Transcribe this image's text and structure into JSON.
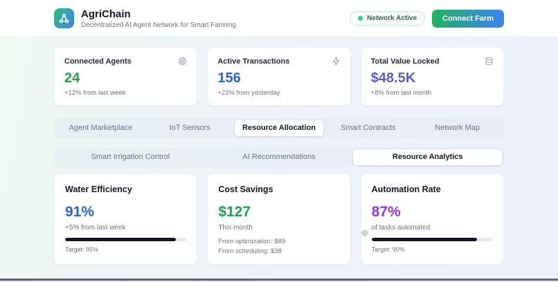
{
  "header": {
    "title": "AgriChain",
    "subtitle": "Decentralized AI Agent Network for Smart Farming",
    "network_badge": "Network Active",
    "connect_button": "Connect Farm"
  },
  "stats": [
    {
      "label": "Connected Agents",
      "value": "24",
      "sub": "+12% from last week",
      "color": "#1fa44e",
      "icon": "cpu-icon"
    },
    {
      "label": "Active Transactions",
      "value": "156",
      "sub": "+23% from yesterday",
      "color": "#2563eb",
      "icon": "zap-icon"
    },
    {
      "label": "Total Value Locked",
      "value": "$48.5K",
      "sub": "+8% from last month",
      "color": "#5b5bd6",
      "icon": "database-icon"
    }
  ],
  "primary_tabs": {
    "active": "Resource Allocation",
    "items": [
      {
        "label": "Agent Marketplace"
      },
      {
        "label": "IoT Sensors"
      },
      {
        "label": "Resource Allocation"
      },
      {
        "label": "Smart Contracts"
      },
      {
        "label": "Network Map"
      }
    ]
  },
  "secondary_tabs": {
    "active": "Resource Analytics",
    "items": [
      {
        "label": "Smart Irrigation Control"
      },
      {
        "label": "AI Recommendations"
      },
      {
        "label": "Resource Analytics"
      }
    ]
  },
  "metrics": [
    {
      "title": "Water Efficiency",
      "value": "91%",
      "sub": "+5% from last week",
      "color": "#2563eb",
      "progress": 91,
      "target": "Target: 95%"
    },
    {
      "title": "Cost Savings",
      "value": "$127",
      "sub": "This month",
      "color": "#1fa44e",
      "lines": [
        "From optimization: $89",
        "From scheduling: $38"
      ]
    },
    {
      "title": "Automation Rate",
      "value": "87%",
      "sub": "of tasks automated",
      "color": "#9333ea",
      "progress": 87,
      "target": "Target: 90%"
    }
  ],
  "colors": {
    "brand_gradient_start": "#2fbf71",
    "brand_gradient_end": "#3b82f6",
    "progress_fill": "#111827",
    "badge_dot": "#34c98e"
  }
}
